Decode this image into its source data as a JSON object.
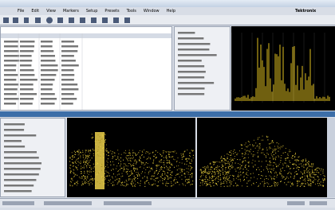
{
  "menu": [
    "File",
    "Edit",
    "View",
    "Markers",
    "Setup",
    "Presets",
    "Tools",
    "Window",
    "Help"
  ],
  "brand": "Tektronix"
}
